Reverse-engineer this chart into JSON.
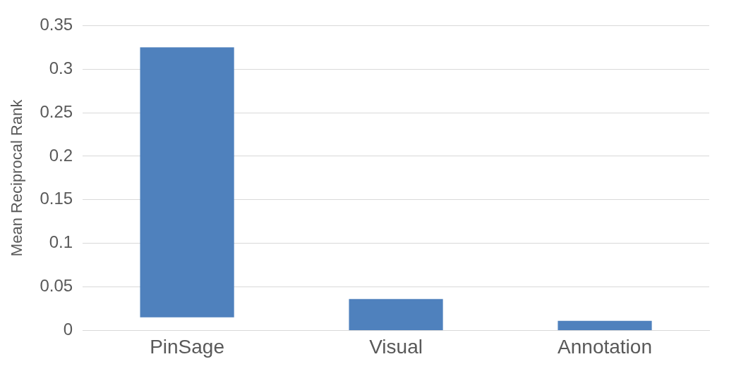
{
  "chart_data": {
    "type": "bar",
    "ylabel": "Mean Reciprocal Rank",
    "categories": [
      "PinSage",
      "Visual",
      "Annotation"
    ],
    "values": [
      0.31,
      0.036,
      0.011
    ],
    "base": [
      0.015,
      0,
      0
    ],
    "color": "#4f81bd",
    "ylim": [
      0,
      0.35
    ],
    "yticks": [
      0,
      0.05,
      0.1,
      0.15,
      0.2,
      0.25,
      0.3,
      0.35
    ],
    "grid": "y"
  }
}
